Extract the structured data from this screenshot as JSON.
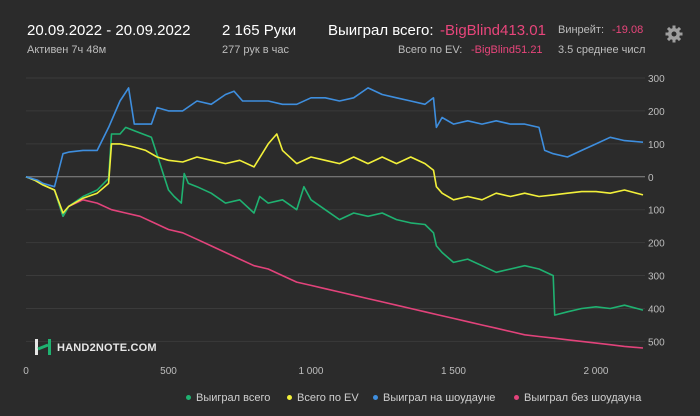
{
  "header": {
    "date_range": "20.09.2022 - 20.09.2022",
    "active": "Активен 7ч 48м",
    "hands": "2 165 Руки",
    "hands_per_hour": "277 рук в час",
    "won_total_label": "Выиграл всего:",
    "won_total_value": "-BigBlind413.01",
    "ev_total_label": "Всего по EV:",
    "ev_total_value": "-BigBlind51.21",
    "winrate_label": "Винрейт:",
    "winrate_value": "-19.08",
    "avg_label": "3.5 среднее числ"
  },
  "logo": {
    "text": "HAND2NOTE.COM"
  },
  "colors": {
    "background": "#2b2b2b",
    "won_total": "#1fb271",
    "ev_total": "#f2f03a",
    "showdown": "#3e8ede",
    "non_showdown": "#e2437b",
    "negative_text": "#e8457b"
  },
  "chart_data": {
    "type": "line",
    "xlim": [
      0,
      2165
    ],
    "ylim": [
      -520,
      300
    ],
    "x_ticks": [
      0,
      500,
      1000,
      1500,
      2000
    ],
    "x_tick_labels": [
      "0",
      "500",
      "1 000",
      "1 500",
      "2 000"
    ],
    "y_ticks": [
      300,
      200,
      100,
      0,
      -100,
      -200,
      -300,
      -400,
      -500
    ],
    "y_tick_labels": [
      "300",
      "200",
      "100",
      "0",
      "100",
      "200",
      "300",
      "400",
      "500"
    ],
    "grid": "horizontal",
    "legend": "bottom",
    "series": [
      {
        "name": "Выиграл всего",
        "color": "#1fb271",
        "points": [
          [
            0,
            0
          ],
          [
            30,
            -10
          ],
          [
            60,
            -25
          ],
          [
            100,
            -40
          ],
          [
            130,
            -120
          ],
          [
            150,
            -90
          ],
          [
            200,
            -60
          ],
          [
            250,
            -40
          ],
          [
            290,
            -5
          ],
          [
            300,
            130
          ],
          [
            330,
            130
          ],
          [
            350,
            150
          ],
          [
            380,
            140
          ],
          [
            410,
            130
          ],
          [
            440,
            120
          ],
          [
            500,
            -40
          ],
          [
            520,
            -60
          ],
          [
            545,
            -80
          ],
          [
            555,
            10
          ],
          [
            570,
            -20
          ],
          [
            600,
            -30
          ],
          [
            650,
            -50
          ],
          [
            700,
            -80
          ],
          [
            750,
            -70
          ],
          [
            800,
            -110
          ],
          [
            820,
            -60
          ],
          [
            850,
            -80
          ],
          [
            900,
            -70
          ],
          [
            950,
            -100
          ],
          [
            975,
            -30
          ],
          [
            1000,
            -70
          ],
          [
            1050,
            -100
          ],
          [
            1100,
            -130
          ],
          [
            1150,
            -110
          ],
          [
            1200,
            -120
          ],
          [
            1250,
            -110
          ],
          [
            1300,
            -130
          ],
          [
            1350,
            -140
          ],
          [
            1400,
            -145
          ],
          [
            1430,
            -170
          ],
          [
            1440,
            -210
          ],
          [
            1460,
            -230
          ],
          [
            1500,
            -260
          ],
          [
            1550,
            -250
          ],
          [
            1600,
            -270
          ],
          [
            1650,
            -290
          ],
          [
            1700,
            -280
          ],
          [
            1750,
            -270
          ],
          [
            1800,
            -280
          ],
          [
            1850,
            -300
          ],
          [
            1855,
            -420
          ],
          [
            1900,
            -410
          ],
          [
            1950,
            -400
          ],
          [
            2000,
            -395
          ],
          [
            2050,
            -400
          ],
          [
            2100,
            -390
          ],
          [
            2165,
            -405
          ]
        ]
      },
      {
        "name": "Всего по EV",
        "color": "#f2f03a",
        "points": [
          [
            0,
            0
          ],
          [
            30,
            -10
          ],
          [
            60,
            -25
          ],
          [
            100,
            -40
          ],
          [
            130,
            -110
          ],
          [
            150,
            -90
          ],
          [
            200,
            -65
          ],
          [
            250,
            -50
          ],
          [
            290,
            -20
          ],
          [
            300,
            100
          ],
          [
            330,
            100
          ],
          [
            380,
            90
          ],
          [
            420,
            80
          ],
          [
            460,
            60
          ],
          [
            500,
            50
          ],
          [
            550,
            45
          ],
          [
            600,
            60
          ],
          [
            650,
            50
          ],
          [
            700,
            40
          ],
          [
            750,
            50
          ],
          [
            800,
            30
          ],
          [
            850,
            100
          ],
          [
            880,
            130
          ],
          [
            900,
            80
          ],
          [
            950,
            40
          ],
          [
            1000,
            60
          ],
          [
            1050,
            50
          ],
          [
            1100,
            40
          ],
          [
            1150,
            60
          ],
          [
            1200,
            40
          ],
          [
            1250,
            60
          ],
          [
            1300,
            40
          ],
          [
            1350,
            60
          ],
          [
            1400,
            40
          ],
          [
            1430,
            20
          ],
          [
            1440,
            -30
          ],
          [
            1460,
            -50
          ],
          [
            1500,
            -70
          ],
          [
            1550,
            -60
          ],
          [
            1600,
            -70
          ],
          [
            1650,
            -50
          ],
          [
            1700,
            -60
          ],
          [
            1750,
            -50
          ],
          [
            1800,
            -60
          ],
          [
            1850,
            -55
          ],
          [
            1900,
            -50
          ],
          [
            1950,
            -45
          ],
          [
            2000,
            -45
          ],
          [
            2050,
            -50
          ],
          [
            2100,
            -40
          ],
          [
            2165,
            -55
          ]
        ]
      },
      {
        "name": "Выиграл на шоудауне",
        "color": "#3e8ede",
        "points": [
          [
            0,
            0
          ],
          [
            40,
            -10
          ],
          [
            60,
            -20
          ],
          [
            100,
            -30
          ],
          [
            130,
            70
          ],
          [
            150,
            75
          ],
          [
            200,
            80
          ],
          [
            250,
            80
          ],
          [
            290,
            150
          ],
          [
            330,
            230
          ],
          [
            345,
            250
          ],
          [
            360,
            270
          ],
          [
            380,
            160
          ],
          [
            420,
            160
          ],
          [
            440,
            160
          ],
          [
            460,
            210
          ],
          [
            500,
            200
          ],
          [
            550,
            200
          ],
          [
            600,
            230
          ],
          [
            650,
            220
          ],
          [
            700,
            250
          ],
          [
            730,
            260
          ],
          [
            760,
            230
          ],
          [
            800,
            230
          ],
          [
            850,
            230
          ],
          [
            900,
            220
          ],
          [
            950,
            220
          ],
          [
            1000,
            240
          ],
          [
            1050,
            240
          ],
          [
            1100,
            230
          ],
          [
            1150,
            240
          ],
          [
            1200,
            270
          ],
          [
            1250,
            250
          ],
          [
            1300,
            240
          ],
          [
            1350,
            230
          ],
          [
            1400,
            220
          ],
          [
            1430,
            240
          ],
          [
            1440,
            150
          ],
          [
            1460,
            180
          ],
          [
            1500,
            160
          ],
          [
            1550,
            170
          ],
          [
            1600,
            160
          ],
          [
            1650,
            170
          ],
          [
            1700,
            160
          ],
          [
            1750,
            160
          ],
          [
            1800,
            150
          ],
          [
            1820,
            80
          ],
          [
            1850,
            70
          ],
          [
            1900,
            60
          ],
          [
            1950,
            80
          ],
          [
            2000,
            100
          ],
          [
            2050,
            120
          ],
          [
            2100,
            110
          ],
          [
            2165,
            105
          ]
        ]
      },
      {
        "name": "Выиграл без шоудауна",
        "color": "#e2437b",
        "points": [
          [
            0,
            0
          ],
          [
            30,
            -10
          ],
          [
            60,
            -25
          ],
          [
            100,
            -40
          ],
          [
            130,
            -120
          ],
          [
            150,
            -90
          ],
          [
            200,
            -70
          ],
          [
            250,
            -80
          ],
          [
            300,
            -100
          ],
          [
            350,
            -110
          ],
          [
            400,
            -120
          ],
          [
            450,
            -140
          ],
          [
            500,
            -160
          ],
          [
            550,
            -170
          ],
          [
            600,
            -190
          ],
          [
            650,
            -210
          ],
          [
            700,
            -230
          ],
          [
            750,
            -250
          ],
          [
            800,
            -270
          ],
          [
            850,
            -280
          ],
          [
            900,
            -300
          ],
          [
            950,
            -320
          ],
          [
            1000,
            -330
          ],
          [
            1050,
            -340
          ],
          [
            1100,
            -350
          ],
          [
            1150,
            -360
          ],
          [
            1200,
            -370
          ],
          [
            1250,
            -380
          ],
          [
            1300,
            -390
          ],
          [
            1350,
            -400
          ],
          [
            1400,
            -410
          ],
          [
            1450,
            -420
          ],
          [
            1500,
            -430
          ],
          [
            1550,
            -440
          ],
          [
            1600,
            -450
          ],
          [
            1650,
            -460
          ],
          [
            1700,
            -470
          ],
          [
            1750,
            -480
          ],
          [
            1800,
            -485
          ],
          [
            1850,
            -490
          ],
          [
            1900,
            -495
          ],
          [
            1950,
            -500
          ],
          [
            2000,
            -505
          ],
          [
            2050,
            -510
          ],
          [
            2100,
            -515
          ],
          [
            2165,
            -520
          ]
        ]
      }
    ]
  }
}
